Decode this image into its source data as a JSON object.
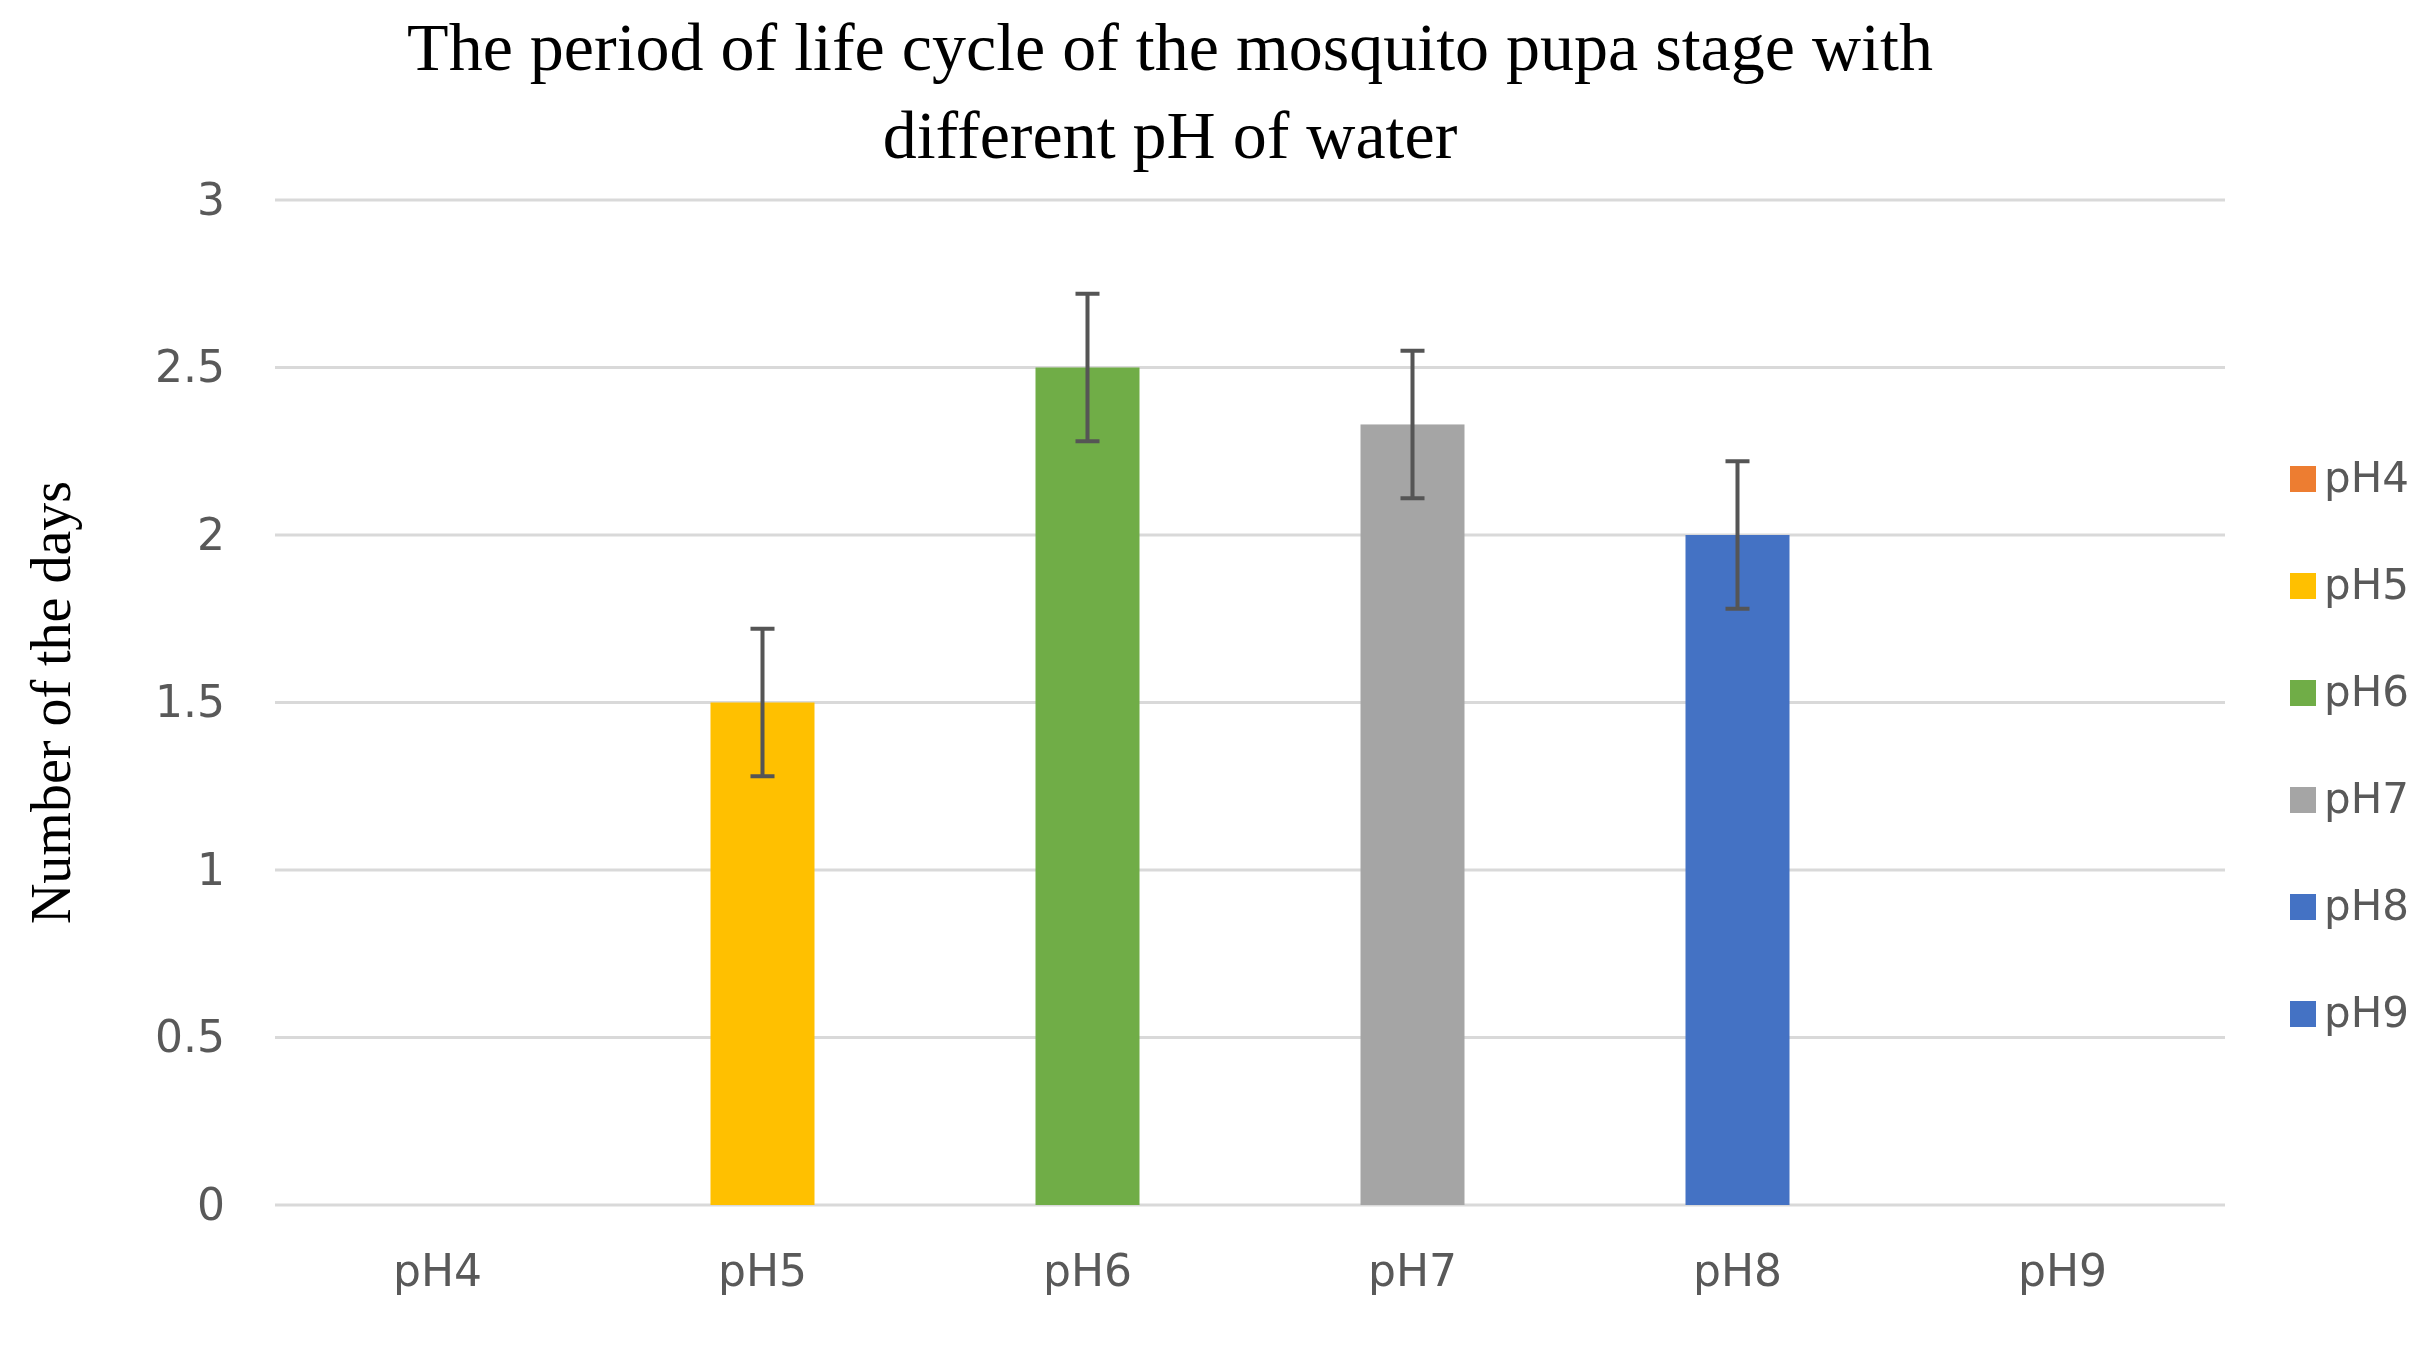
{
  "chart_data": {
    "type": "bar",
    "title": "The period of life cycle of the mosquito pupa stage with different pH of water",
    "ylabel": "Number of the days",
    "categories": [
      "pH4",
      "pH5",
      "pH6",
      "pH7",
      "pH8",
      "pH9"
    ],
    "stacked": true,
    "series": [
      {
        "name": "pH4",
        "color": "#ed7d31",
        "values": [
          0,
          null,
          null,
          null,
          null,
          null
        ]
      },
      {
        "name": "pH5",
        "color": "#ffc000",
        "values": [
          null,
          1.5,
          null,
          null,
          null,
          null
        ],
        "errors": [
          null,
          0.22,
          null,
          null,
          null,
          null
        ]
      },
      {
        "name": "pH6",
        "color": "#70ad47",
        "values": [
          null,
          null,
          2.5,
          null,
          null,
          null
        ],
        "errors": [
          null,
          null,
          0.22,
          null,
          null,
          null
        ]
      },
      {
        "name": "pH7",
        "color": "#a5a5a5",
        "values": [
          null,
          null,
          null,
          2.33,
          null,
          null
        ],
        "errors": [
          null,
          null,
          null,
          0.22,
          null,
          null
        ]
      },
      {
        "name": "pH8",
        "color": "#4472c4",
        "values": [
          null,
          null,
          null,
          null,
          2.0,
          null
        ],
        "errors": [
          null,
          null,
          null,
          null,
          0.22,
          null
        ]
      },
      {
        "name": "pH9",
        "color": "#4472c4",
        "values": [
          null,
          null,
          null,
          null,
          null,
          0
        ]
      }
    ],
    "ylim": [
      0,
      3
    ],
    "yticks": [
      0,
      0.5,
      1,
      1.5,
      2,
      2.5,
      3
    ],
    "grid": "y",
    "legend": "right"
  }
}
